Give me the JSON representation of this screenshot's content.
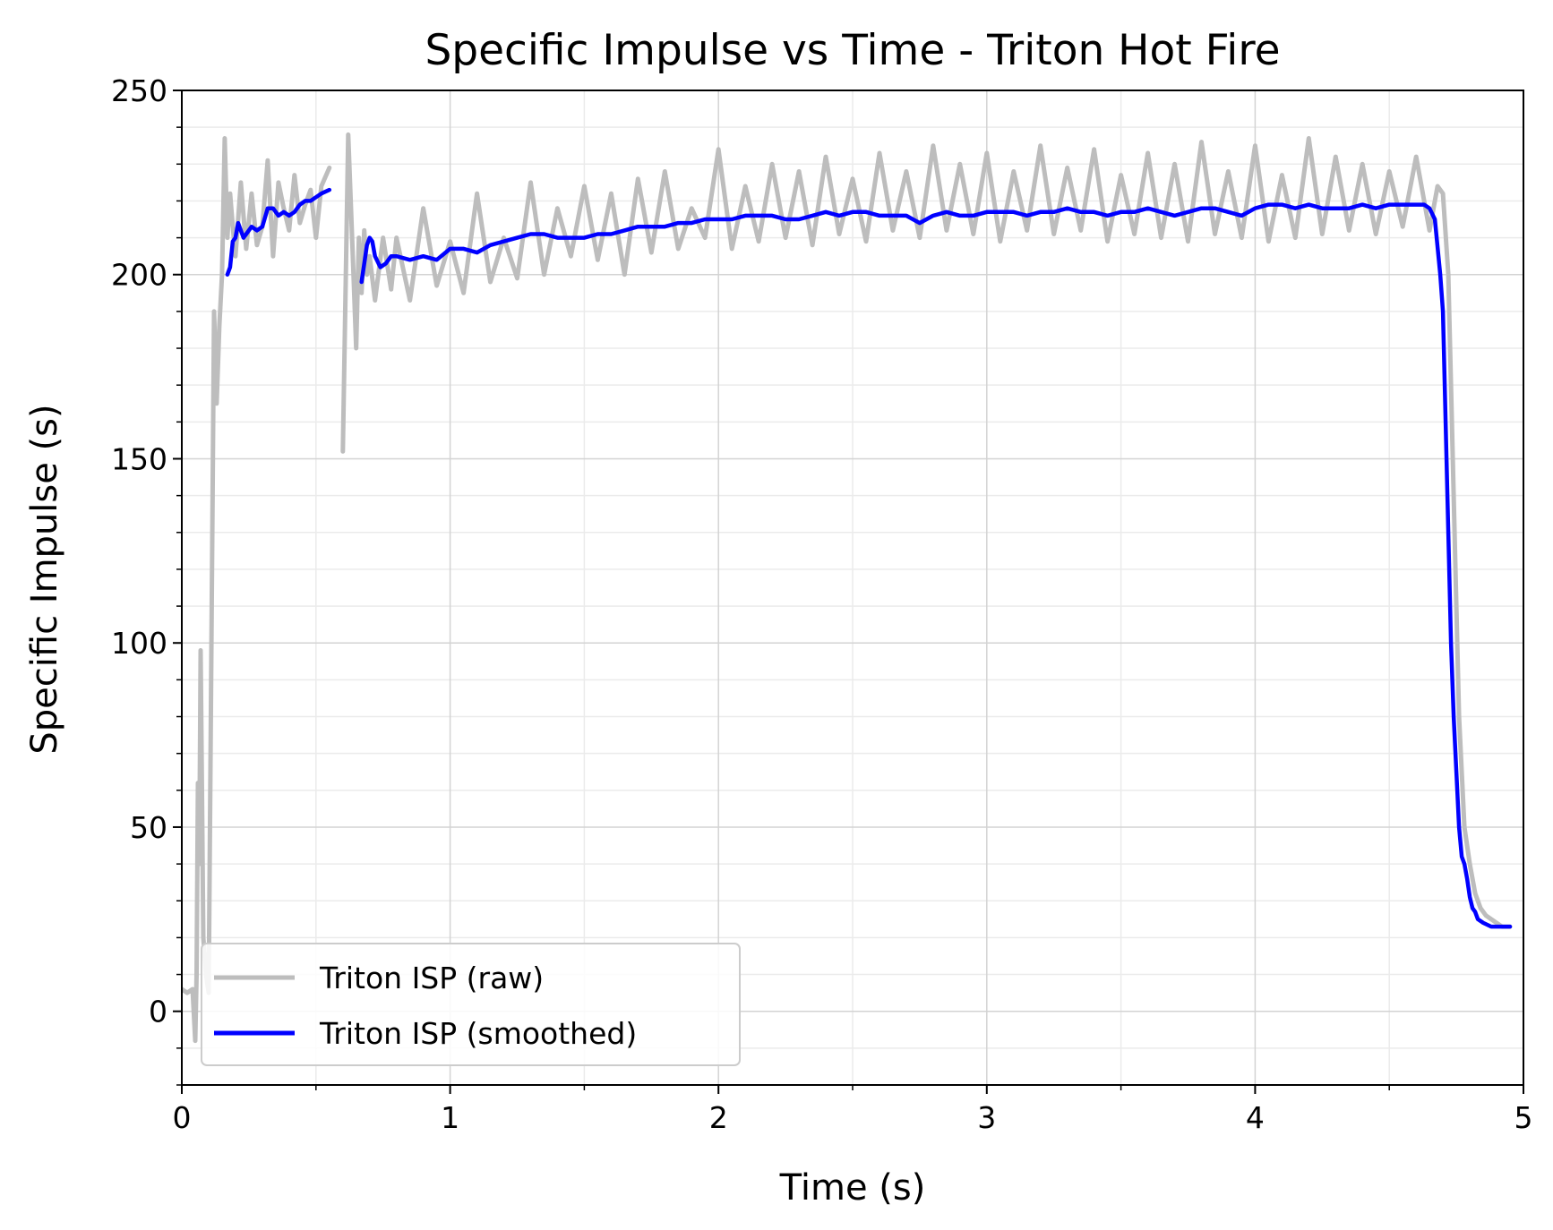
{
  "chart_data": {
    "type": "line",
    "title": "Specific Impulse vs Time - Triton Hot Fire",
    "xlabel": "Time (s)",
    "ylabel": "Specific Impulse (s)",
    "xlim": [
      0,
      5
    ],
    "ylim": [
      -20,
      250
    ],
    "xticks": [
      {
        "value": 0,
        "label": "0"
      },
      {
        "value": 1,
        "label": "1"
      },
      {
        "value": 2,
        "label": "2"
      },
      {
        "value": 3,
        "label": "3"
      },
      {
        "value": 4,
        "label": "4"
      },
      {
        "value": 5,
        "label": "5"
      }
    ],
    "yticks": [
      {
        "value": 0,
        "label": "0"
      },
      {
        "value": 50,
        "label": "50"
      },
      {
        "value": 100,
        "label": "100"
      },
      {
        "value": 150,
        "label": "150"
      },
      {
        "value": 200,
        "label": "200"
      },
      {
        "value": 250,
        "label": "250"
      }
    ],
    "grid": true,
    "minor_grid": true,
    "legend_position": "lower-left",
    "series": [
      {
        "name": "Triton ISP (raw)",
        "color": "#bdbdbd",
        "x": [
          0.0,
          0.02,
          0.04,
          0.05,
          0.055,
          0.06,
          0.065,
          0.07,
          0.075,
          0.08,
          0.09,
          0.1,
          0.12,
          0.13,
          0.14,
          0.15,
          0.16,
          0.17,
          0.18,
          0.19,
          0.2,
          0.22,
          0.24,
          0.26,
          0.28,
          0.3,
          0.32,
          0.34,
          0.36,
          0.38,
          0.4,
          0.42,
          0.44,
          0.46,
          0.48,
          0.5,
          0.52,
          0.55,
          0.56,
          0.6,
          0.62,
          0.64,
          0.65,
          0.66,
          0.67,
          0.68,
          0.69,
          0.7,
          0.72,
          0.75,
          0.78,
          0.8,
          0.85,
          0.9,
          0.95,
          1.0,
          1.05,
          1.1,
          1.15,
          1.2,
          1.25,
          1.3,
          1.35,
          1.4,
          1.45,
          1.5,
          1.55,
          1.6,
          1.65,
          1.7,
          1.75,
          1.8,
          1.85,
          1.9,
          1.95,
          2.0,
          2.05,
          2.1,
          2.15,
          2.2,
          2.25,
          2.3,
          2.35,
          2.4,
          2.45,
          2.5,
          2.55,
          2.6,
          2.65,
          2.7,
          2.75,
          2.8,
          2.85,
          2.9,
          2.95,
          3.0,
          3.05,
          3.1,
          3.15,
          3.2,
          3.25,
          3.3,
          3.35,
          3.4,
          3.45,
          3.5,
          3.55,
          3.6,
          3.65,
          3.7,
          3.75,
          3.8,
          3.85,
          3.9,
          3.95,
          4.0,
          4.05,
          4.1,
          4.15,
          4.2,
          4.25,
          4.3,
          4.35,
          4.4,
          4.45,
          4.5,
          4.55,
          4.6,
          4.65,
          4.68,
          4.7,
          4.72,
          4.74,
          4.76,
          4.78,
          4.8,
          4.82,
          4.84,
          4.86,
          4.88,
          4.9,
          4.92,
          4.95
        ],
        "y": [
          6,
          5,
          6,
          -8,
          10,
          62,
          40,
          98,
          60,
          20,
          10,
          5,
          190,
          165,
          186,
          200,
          237,
          210,
          222,
          213,
          205,
          225,
          207,
          222,
          208,
          213,
          231,
          205,
          225,
          218,
          212,
          227,
          214,
          219,
          223,
          210,
          224,
          229,
          null,
          152,
          238,
          200,
          180,
          210,
          195,
          212,
          200,
          205,
          193,
          210,
          196,
          210,
          193,
          218,
          197,
          209,
          195,
          222,
          198,
          210,
          199,
          225,
          200,
          218,
          205,
          224,
          204,
          222,
          200,
          226,
          206,
          228,
          207,
          218,
          210,
          234,
          207,
          224,
          209,
          230,
          210,
          228,
          208,
          232,
          211,
          226,
          209,
          233,
          212,
          228,
          210,
          235,
          212,
          230,
          211,
          233,
          209,
          228,
          212,
          235,
          211,
          229,
          212,
          234,
          209,
          227,
          211,
          233,
          210,
          230,
          209,
          236,
          211,
          228,
          210,
          235,
          209,
          227,
          210,
          237,
          211,
          232,
          212,
          230,
          211,
          228,
          213,
          232,
          212,
          224,
          222,
          200,
          140,
          80,
          50,
          40,
          32,
          28,
          26,
          25,
          24,
          23,
          23
        ]
      },
      {
        "name": "Triton ISP (smoothed)",
        "color": "#0000ff",
        "x": [
          0.17,
          0.18,
          0.19,
          0.2,
          0.21,
          0.22,
          0.23,
          0.24,
          0.26,
          0.28,
          0.3,
          0.32,
          0.34,
          0.36,
          0.38,
          0.4,
          0.42,
          0.44,
          0.46,
          0.48,
          0.5,
          0.52,
          0.55,
          null,
          0.67,
          0.68,
          0.69,
          0.7,
          0.71,
          0.72,
          0.74,
          0.76,
          0.78,
          0.8,
          0.85,
          0.9,
          0.95,
          1.0,
          1.05,
          1.1,
          1.15,
          1.2,
          1.25,
          1.3,
          1.35,
          1.4,
          1.45,
          1.5,
          1.55,
          1.6,
          1.65,
          1.7,
          1.75,
          1.8,
          1.85,
          1.9,
          1.95,
          2.0,
          2.05,
          2.1,
          2.15,
          2.2,
          2.25,
          2.3,
          2.35,
          2.4,
          2.45,
          2.5,
          2.55,
          2.6,
          2.65,
          2.7,
          2.75,
          2.8,
          2.85,
          2.9,
          2.95,
          3.0,
          3.05,
          3.1,
          3.15,
          3.2,
          3.25,
          3.3,
          3.35,
          3.4,
          3.45,
          3.5,
          3.55,
          3.6,
          3.65,
          3.7,
          3.75,
          3.8,
          3.85,
          3.9,
          3.95,
          4.0,
          4.05,
          4.1,
          4.15,
          4.2,
          4.25,
          4.3,
          4.35,
          4.4,
          4.45,
          4.5,
          4.55,
          4.6,
          4.63,
          4.65,
          4.67,
          4.69,
          4.7,
          4.71,
          4.72,
          4.73,
          4.74,
          4.75,
          4.76,
          4.77,
          4.78,
          4.79,
          4.8,
          4.81,
          4.82,
          4.83,
          4.85,
          4.88,
          4.91,
          4.95
        ],
        "y": [
          200,
          202,
          209,
          210,
          214,
          212,
          210,
          211,
          213,
          212,
          213,
          218,
          218,
          216,
          217,
          216,
          217,
          219,
          220,
          220,
          221,
          222,
          223,
          null,
          198,
          203,
          208,
          210,
          209,
          205,
          202,
          203,
          205,
          205,
          204,
          205,
          204,
          207,
          207,
          206,
          208,
          209,
          210,
          211,
          211,
          210,
          210,
          210,
          211,
          211,
          212,
          213,
          213,
          213,
          214,
          214,
          215,
          215,
          215,
          216,
          216,
          216,
          215,
          215,
          216,
          217,
          216,
          217,
          217,
          216,
          216,
          216,
          214,
          216,
          217,
          216,
          216,
          217,
          217,
          217,
          216,
          217,
          217,
          218,
          217,
          217,
          216,
          217,
          217,
          218,
          217,
          216,
          217,
          218,
          218,
          217,
          216,
          218,
          219,
          219,
          218,
          219,
          218,
          218,
          218,
          219,
          218,
          219,
          219,
          219,
          219,
          218,
          215,
          200,
          190,
          160,
          130,
          100,
          80,
          65,
          50,
          42,
          40,
          36,
          31,
          28,
          27,
          25,
          24,
          23,
          23,
          23
        ]
      }
    ]
  }
}
